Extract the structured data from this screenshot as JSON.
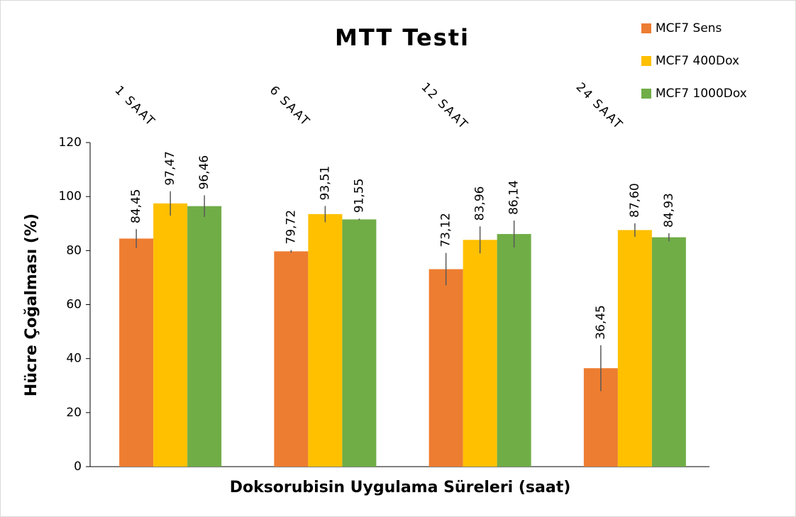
{
  "chart_data": {
    "type": "bar",
    "title": "MTT Testi",
    "x_label": "Doksorubisin Uygulama Süreleri (saat)",
    "y_label": "Hücre Çoğalması (%)",
    "categories": [
      "1 SAAT",
      "6 SAAT",
      "12 SAAT",
      "24 SAAT"
    ],
    "series": [
      {
        "name": "MCF7 Sens",
        "color": "#ed7d31",
        "values": [
          84.45,
          79.72,
          73.12,
          36.45
        ],
        "value_labels": [
          "84,45",
          "79,72",
          "73,12",
          "36,45"
        ],
        "errors": [
          3.5,
          0.5,
          6,
          8.5
        ]
      },
      {
        "name": "MCF7 400Dox",
        "color": "#ffc000",
        "values": [
          97.47,
          93.51,
          83.96,
          87.6
        ],
        "value_labels": [
          "97,47",
          "93,51",
          "83,96",
          "87,60"
        ],
        "errors": [
          4.5,
          3,
          5,
          2.5
        ]
      },
      {
        "name": "MCF7 1000Dox",
        "color": "#70ad47",
        "values": [
          96.46,
          91.55,
          86.14,
          84.93
        ],
        "value_labels": [
          "96,46",
          "91,55",
          "86,14",
          "84,93"
        ],
        "errors": [
          4,
          0.3,
          5,
          1.5
        ]
      }
    ],
    "ylim": [
      0,
      120
    ],
    "yticks": [
      0,
      20,
      40,
      60,
      80,
      100,
      120
    ],
    "legend": "top-right"
  }
}
